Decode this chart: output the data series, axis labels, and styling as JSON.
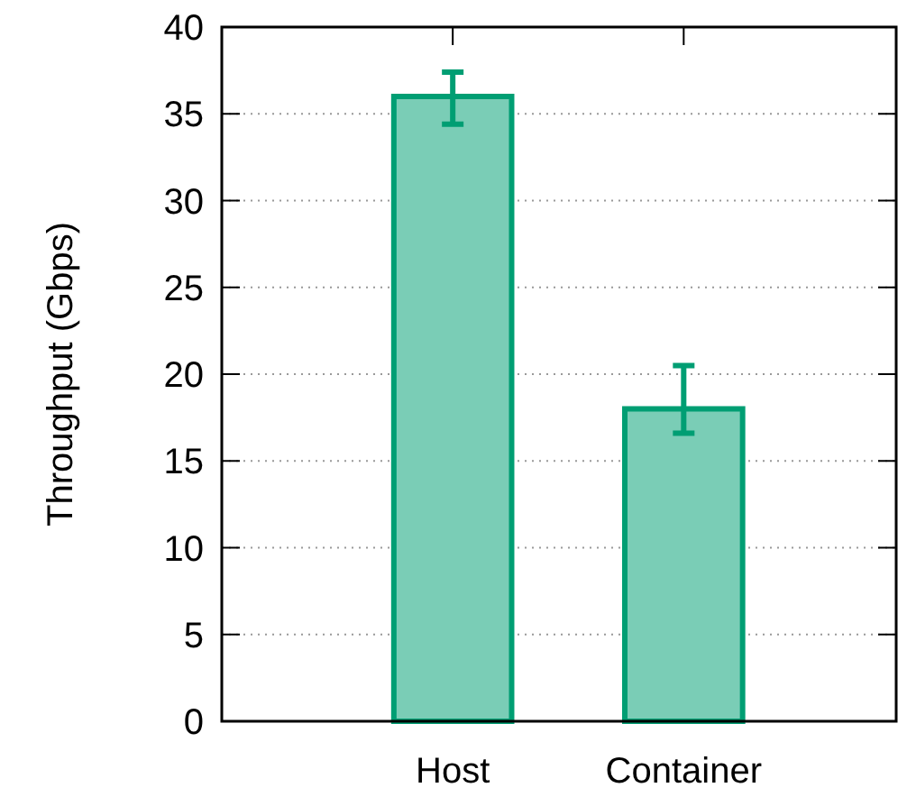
{
  "chart_data": {
    "type": "bar",
    "ylabel": "Throughput (Gbps)",
    "categories": [
      "Host",
      "Container"
    ],
    "series": [
      {
        "color": "#009e73",
        "values": [
          36,
          18
        ],
        "errors": [
          [
            34.4,
            37.4
          ],
          [
            16.6,
            20.5
          ]
        ]
      }
    ],
    "ylim": [
      0,
      40
    ],
    "yticks": [
      0,
      5,
      10,
      15,
      20,
      25,
      30,
      35,
      40
    ],
    "grid": "y"
  }
}
